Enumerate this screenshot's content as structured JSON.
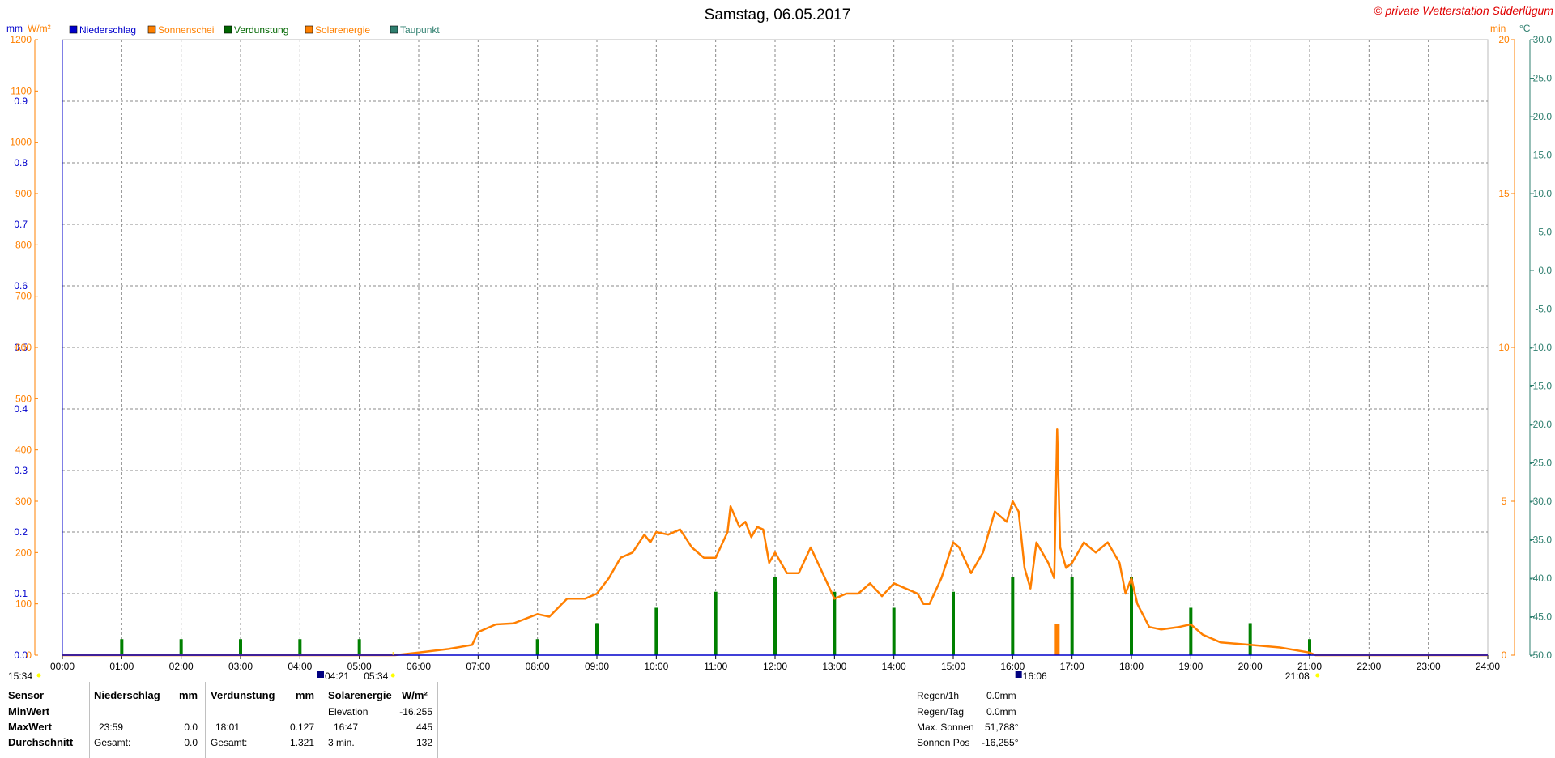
{
  "title": "Samstag, 06.05.2017",
  "watermark": "© private Wetterstation Süderlügum",
  "unit_labels": {
    "mm": "mm",
    "wm2": "W/m²",
    "min": "min",
    "celsius": "°C"
  },
  "legend": [
    {
      "label": "Niederschlag",
      "color": "#0000cc"
    },
    {
      "label": "Sonnenschei",
      "color": "#ff8000"
    },
    {
      "label": "Verdunstung",
      "color": "#006600"
    },
    {
      "label": "Solarenergie",
      "color": "#ff8000"
    },
    {
      "label": "Taupunkt",
      "color": "#2f7f6f"
    }
  ],
  "colors": {
    "mm_axis": "#0000cc",
    "wm2_axis": "#ff8000",
    "min_axis": "#ff8000",
    "temp_axis": "#2f7f6f",
    "grid": "#888888",
    "watermark": "#e00000"
  },
  "axes": {
    "mm_ticks": [
      "0.0",
      "0.1",
      "0.2",
      "0.3",
      "0.4",
      "0.5",
      "0.6",
      "0.7",
      "0.8",
      "0.9"
    ],
    "wm2_ticks": [
      "0",
      "100",
      "200",
      "300",
      "400",
      "500",
      "600",
      "700",
      "800",
      "900",
      "1000",
      "1100",
      "1200"
    ],
    "min_ticks": [
      "0",
      "5",
      "10",
      "15",
      "20"
    ],
    "temp_ticks": [
      "-50.0",
      "-45.0",
      "-40.0",
      "-35.0",
      "-30.0",
      "-25.0",
      "-20.0",
      "-15.0",
      "-10.0",
      "-5.0",
      "0.0",
      "5.0",
      "10.0",
      "15.0",
      "20.0",
      "25.0",
      "30.0"
    ],
    "x_ticks": [
      "00:00",
      "01:00",
      "02:00",
      "03:00",
      "04:00",
      "05:00",
      "06:00",
      "07:00",
      "08:00",
      "09:00",
      "10:00",
      "11:00",
      "12:00",
      "13:00",
      "14:00",
      "15:00",
      "16:00",
      "17:00",
      "18:00",
      "19:00",
      "20:00",
      "21:00",
      "22:00",
      "23:00",
      "24:00"
    ]
  },
  "markers": {
    "left_time": "15:34",
    "moonrise": "04:21",
    "sunrise": "05:34",
    "moonset": "16:06",
    "sunset": "21:08"
  },
  "chart_data": {
    "type": "line",
    "xlabel": "",
    "xlim": [
      0,
      24
    ],
    "ylim": [
      0,
      1200
    ],
    "grid": true,
    "legend_position": "top-left",
    "series": [
      {
        "name": "Solarenergie",
        "unit": "W/m²",
        "x": [
          0,
          5.6,
          6.0,
          6.5,
          6.9,
          7.0,
          7.3,
          7.6,
          8.0,
          8.2,
          8.5,
          8.8,
          9.0,
          9.2,
          9.4,
          9.6,
          9.8,
          9.9,
          10.0,
          10.2,
          10.4,
          10.6,
          10.8,
          11.0,
          11.2,
          11.25,
          11.4,
          11.5,
          11.6,
          11.7,
          11.8,
          11.9,
          12.0,
          12.2,
          12.4,
          12.6,
          12.8,
          13.0,
          13.2,
          13.4,
          13.6,
          13.8,
          14.0,
          14.2,
          14.4,
          14.5,
          14.6,
          14.8,
          15.0,
          15.1,
          15.3,
          15.5,
          15.7,
          15.9,
          16.0,
          16.1,
          16.2,
          16.3,
          16.4,
          16.6,
          16.7,
          16.75,
          16.8,
          16.9,
          17.0,
          17.2,
          17.4,
          17.6,
          17.8,
          17.9,
          18.0,
          18.1,
          18.3,
          18.5,
          18.8,
          19.0,
          19.2,
          19.5,
          20.0,
          20.5,
          21.0,
          21.1,
          24
        ],
        "values": [
          0,
          0,
          5,
          12,
          20,
          45,
          60,
          62,
          80,
          75,
          110,
          110,
          120,
          150,
          190,
          200,
          235,
          220,
          240,
          235,
          245,
          210,
          190,
          190,
          240,
          290,
          250,
          260,
          230,
          250,
          245,
          180,
          200,
          160,
          160,
          210,
          160,
          110,
          120,
          120,
          140,
          115,
          140,
          130,
          120,
          100,
          100,
          150,
          220,
          210,
          160,
          200,
          280,
          260,
          300,
          280,
          170,
          130,
          220,
          180,
          150,
          440,
          210,
          170,
          180,
          220,
          200,
          220,
          180,
          120,
          150,
          100,
          55,
          50,
          55,
          60,
          40,
          25,
          20,
          15,
          5,
          0,
          0
        ]
      },
      {
        "name": "Verdunstung",
        "unit": "mm",
        "x": [
          1,
          2,
          3,
          4,
          5,
          8,
          9,
          10,
          11,
          12,
          13,
          14,
          15,
          16,
          17,
          18,
          19,
          20,
          21
        ],
        "values": [
          0.026,
          0.026,
          0.026,
          0.026,
          0.026,
          0.026,
          0.052,
          0.077,
          0.103,
          0.127,
          0.103,
          0.077,
          0.103,
          0.127,
          0.127,
          0.127,
          0.077,
          0.052,
          0.026
        ]
      },
      {
        "name": "Sonnenschein",
        "unit": "min",
        "x": [
          16.75
        ],
        "values": [
          1.0
        ]
      },
      {
        "name": "Niederschlag",
        "unit": "mm",
        "x": [
          0,
          24
        ],
        "values": [
          0.0,
          0.0
        ]
      }
    ]
  },
  "table": {
    "headers": {
      "sensor": "Sensor",
      "niederschlag": "Niederschlag",
      "mm1": "mm",
      "verdunstung": "Verdunstung",
      "mm2": "mm",
      "solarenergie": "Solarenergie",
      "wm2": "W/m²"
    },
    "rows": [
      {
        "label": "MinWert",
        "n_time": "",
        "n_val": "",
        "v_time": "",
        "v_val": "",
        "s_key": "Elevation",
        "s_val": "-16.255"
      },
      {
        "label": "MaxWert",
        "n_time": "23:59",
        "n_val": "0.0",
        "v_time": "18:01",
        "v_val": "0.127",
        "s_key": "16:47",
        "s_val": "445"
      },
      {
        "label": "Durchschnitt",
        "n_time": "Gesamt:",
        "n_val": "0.0",
        "v_time": "Gesamt:",
        "v_val": "1.321",
        "s_key": "3 min.",
        "s_val": "132"
      }
    ]
  },
  "info": [
    {
      "label": "Regen/1h",
      "value": "0.0mm"
    },
    {
      "label": "Regen/Tag",
      "value": "0.0mm"
    },
    {
      "label": "Max. Sonnen",
      "value": "51,788°"
    },
    {
      "label": "Sonnen Pos",
      "value": "-16,255°"
    }
  ]
}
